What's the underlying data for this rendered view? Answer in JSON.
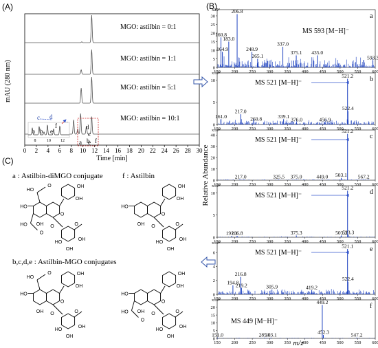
{
  "panels": {
    "A": "(A)",
    "B": "(B)",
    "C": "(C)"
  },
  "chart_data": [
    {
      "type": "line",
      "id": "chromatograms",
      "ylabel": "mAU (280 nm)",
      "xlabel": "Time [min]",
      "xlim": [
        0,
        30
      ],
      "xticks": [
        "0",
        "2",
        "4",
        "6",
        "8",
        "10",
        "12",
        "14",
        "16",
        "18",
        "20",
        "22",
        "24",
        "26",
        "28",
        "30"
      ],
      "traces": [
        {
          "label": "MGO: astilbin = 0:1",
          "peaks": [
            {
              "x": 11.5,
              "h": 1.0
            },
            {
              "x": 9.8,
              "h": 0.03
            }
          ]
        },
        {
          "label": "MGO: astilbin = 1:1",
          "peaks": [
            {
              "x": 9.7,
              "h": 0.18
            },
            {
              "x": 11.5,
              "h": 1.0
            }
          ]
        },
        {
          "label": "MGO: astilbin = 5:1",
          "peaks": [
            {
              "x": 9.7,
              "h": 0.55
            },
            {
              "x": 11.5,
              "h": 0.95
            }
          ]
        },
        {
          "label": "MGO: astilbin = 10:1",
          "peaks": [
            {
              "x": 6.4,
              "h": 0.55
            },
            {
              "x": 7.3,
              "h": 0.6
            },
            {
              "x": 8.4,
              "h": 0.7
            },
            {
              "x": 9.1,
              "h": 0.25
            },
            {
              "x": 9.6,
              "h": 1.0
            },
            {
              "x": 10.6,
              "h": 0.4
            },
            {
              "x": 11.5,
              "h": 0.85
            }
          ]
        }
      ],
      "inset": {
        "peak_labels": [
          "a",
          "b",
          "c",
          "d",
          "e",
          "f"
        ],
        "ticks": [
          "8",
          "10",
          "12"
        ]
      },
      "zoom_labels": [
        "a",
        "b",
        "c",
        "d",
        "e",
        "f"
      ]
    },
    {
      "type": "bar",
      "id": "mass-spectra",
      "ylabel": "Relative Abundance",
      "xlabel": "m/z",
      "xlim": [
        150,
        600
      ],
      "xticks": [
        "150",
        "200",
        "250",
        "300",
        "350",
        "400",
        "450",
        "500",
        "550",
        "600"
      ],
      "spectra": [
        {
          "tag": "a",
          "multiplier": "x10³",
          "yticks": [
            "0",
            "5",
            "10",
            "15",
            "20",
            "25",
            "30"
          ],
          "ymax": 32,
          "ms": "MS 593 [M−H]⁻",
          "peaks": [
            {
              "mz": 206.8,
              "h": 31,
              "label": "206.8"
            },
            {
              "mz": 160.8,
              "h": 17.5,
              "label": "160.8"
            },
            {
              "mz": 183.0,
              "h": 15,
              "label": "183.0"
            },
            {
              "mz": 164.9,
              "h": 9,
              "label": "164.9"
            },
            {
              "mz": 248.9,
              "h": 9,
              "label": "248.9"
            },
            {
              "mz": 265.1,
              "h": 5,
              "label": "265.1"
            },
            {
              "mz": 337.0,
              "h": 12,
              "label": "337.0"
            },
            {
              "mz": 375.1,
              "h": 7,
              "label": "375.1"
            },
            {
              "mz": 435.0,
              "h": 7,
              "label": "435.0"
            },
            {
              "mz": 593.3,
              "h": 4,
              "label": "593.3"
            }
          ]
        },
        {
          "tag": "b",
          "multiplier": "x10⁴",
          "yticks": [
            "0",
            "5",
            "10"
          ],
          "ymax": 11,
          "ms": "MS 521 [M−H]⁻",
          "peaks": [
            {
              "mz": 521.2,
              "h": 10.3,
              "label": "521.2"
            },
            {
              "mz": 522.4,
              "h": 3.0,
              "label": "522.4"
            },
            {
              "mz": 217.0,
              "h": 2.3,
              "label": "217.0"
            },
            {
              "mz": 161.0,
              "h": 1.2,
              "label": "161.0"
            },
            {
              "mz": 260.8,
              "h": 0.6,
              "label": "260.8"
            },
            {
              "mz": 339.1,
              "h": 1.2,
              "label": "339.1"
            },
            {
              "mz": 376.0,
              "h": 0.5,
              "label": "376.0"
            },
            {
              "mz": 456.9,
              "h": 0.5,
              "label": "456.9"
            }
          ]
        },
        {
          "tag": "c",
          "multiplier": "x10⁴",
          "yticks": [
            "0",
            "10",
            "20",
            "30",
            "40"
          ],
          "ymax": 42,
          "ms": "MS 521 [M−H]⁻",
          "peaks": [
            {
              "mz": 521.2,
              "h": 41,
              "label": "521.2"
            },
            {
              "mz": 503.1,
              "h": 2,
              "label": "503.1"
            },
            {
              "mz": 217.0,
              "h": 0.5,
              "label": "217.0"
            },
            {
              "mz": 325.5,
              "h": 0.5,
              "label": "325.5"
            },
            {
              "mz": 375.0,
              "h": 0.5,
              "label": "375.0"
            },
            {
              "mz": 449.0,
              "h": 0.5,
              "label": "449.0"
            },
            {
              "mz": 567.2,
              "h": 0.5,
              "label": "567.2"
            }
          ]
        },
        {
          "tag": "d",
          "multiplier": "x10⁴",
          "yticks": [
            "0",
            "5",
            "10"
          ],
          "ymax": 11,
          "ms": "MS 521 [M−H]⁻",
          "peaks": [
            {
              "mz": 521.2,
              "h": 10.5,
              "label": "521.2"
            },
            {
              "mz": 523.3,
              "h": 0.5,
              "label": "523.3"
            },
            {
              "mz": 503.3,
              "h": 0.4,
              "label": "503.3"
            },
            {
              "mz": 191.1,
              "h": 0.3,
              "label": "191.1"
            },
            {
              "mz": 206.8,
              "h": 0.3,
              "label": "206.8"
            },
            {
              "mz": 375.3,
              "h": 0.4,
              "label": "375.3"
            }
          ]
        },
        {
          "tag": "e",
          "multiplier": "x10⁴",
          "yticks": [
            "0",
            "2",
            "4",
            "6"
          ],
          "ymax": 7,
          "ms": "MS 521 [M−H]⁻",
          "peaks": [
            {
              "mz": 521.1,
              "h": 6.5,
              "label": "521.1"
            },
            {
              "mz": 522.4,
              "h": 1.8,
              "label": "522.4"
            },
            {
              "mz": 216.8,
              "h": 2.5,
              "label": "216.8"
            },
            {
              "mz": 194.8,
              "h": 1.3,
              "label": "194.8"
            },
            {
              "mz": 219.2,
              "h": 0.9,
              "label": "219.2"
            },
            {
              "mz": 305.9,
              "h": 0.7,
              "label": "305.9"
            },
            {
              "mz": 419.2,
              "h": 0.6,
              "label": "419.2"
            }
          ]
        },
        {
          "tag": "f",
          "multiplier": "x10⁴",
          "yticks": [
            "0",
            "5",
            "10",
            "15",
            "20"
          ],
          "ymax": 23,
          "ms": "MS 449 [M−H]⁻",
          "peaks": [
            {
              "mz": 449.2,
              "h": 21.5,
              "label": "449.2"
            },
            {
              "mz": 452.3,
              "h": 2.2,
              "label": "452.3"
            },
            {
              "mz": 151.0,
              "h": 0.5,
              "label": "151.0"
            },
            {
              "mz": 285.0,
              "h": 0.5,
              "label": "285.0"
            },
            {
              "mz": 303.1,
              "h": 0.5,
              "label": "303.1"
            },
            {
              "mz": 547.2,
              "h": 0.5,
              "label": "547.2"
            }
          ]
        }
      ]
    }
  ],
  "structures": {
    "legend_a": "a : Astilbin-diMGO conjugate",
    "legend_f": "f : Astilbin",
    "legend_bcde": "b,c,d,e : Astilbin-MGO conjugates"
  }
}
